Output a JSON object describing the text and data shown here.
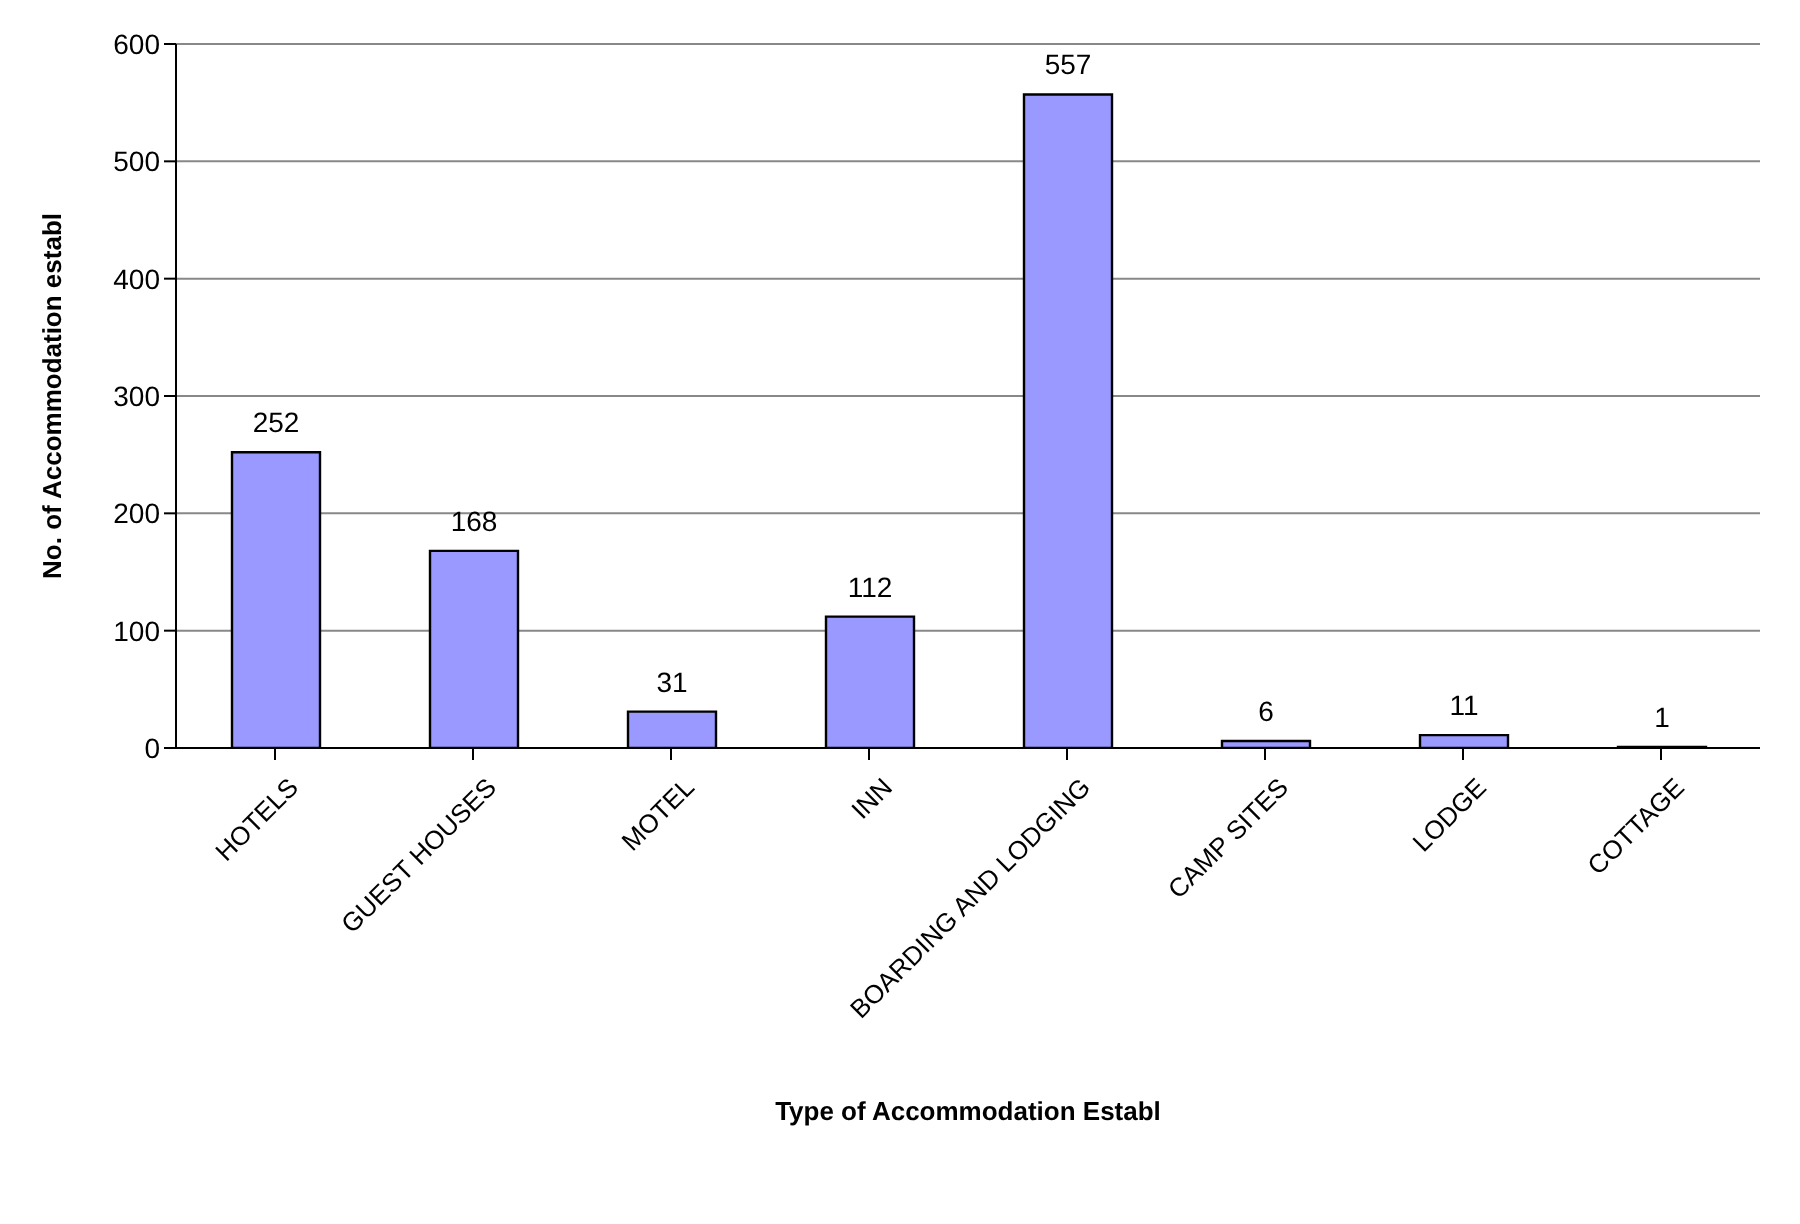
{
  "chart_data": {
    "type": "bar",
    "xlabel": "Type of Accommodation Establ",
    "ylabel": "No. of Accommodation establ",
    "categories": [
      "HOTELS",
      "GUEST HOUSES",
      "MOTEL",
      "INN",
      "BOARDING AND LODGING",
      "CAMP SITES",
      "LODGE",
      "COTTAGE"
    ],
    "values": [
      252,
      168,
      31,
      112,
      557,
      6,
      11,
      1
    ],
    "color": "#9999ff",
    "ylim": [
      0,
      600
    ],
    "yticks": [
      0,
      100,
      200,
      300,
      400,
      500,
      600
    ],
    "grid": "y",
    "data_labels": true
  }
}
